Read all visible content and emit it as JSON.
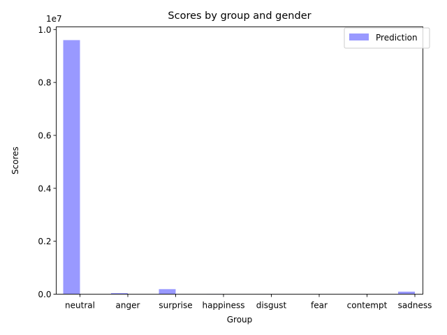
{
  "chart_data": {
    "type": "bar",
    "title": "Scores by group and gender",
    "xlabel": "Group",
    "ylabel": "Scores",
    "offset_text": "1e7",
    "categories": [
      "neutral",
      "anger",
      "surprise",
      "happiness",
      "disgust",
      "fear",
      "contempt",
      "sadness"
    ],
    "series": [
      {
        "name": "Prediction",
        "color": "#9999ff",
        "values": [
          9600000,
          40000,
          190000,
          10000,
          2000,
          1000,
          10000,
          95000
        ]
      }
    ],
    "ylim": [
      0,
      10100000
    ],
    "yticks": [
      0,
      2000000,
      4000000,
      6000000,
      8000000,
      10000000
    ],
    "ytick_labels": [
      "0.0",
      "0.2",
      "0.4",
      "0.6",
      "0.8",
      "1.0"
    ],
    "legend_position": "top-right",
    "grid": false
  }
}
